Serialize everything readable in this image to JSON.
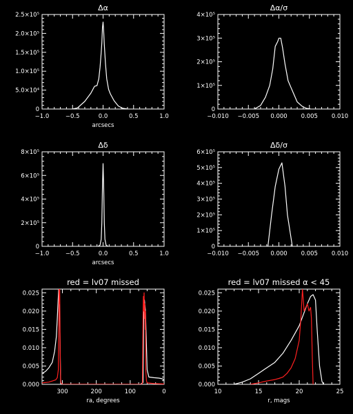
{
  "colors": {
    "background": "#000000",
    "axes": "#ffffff",
    "primary": "#ffffff",
    "highlight": "#ff2020"
  },
  "chart_data": [
    {
      "type": "line",
      "title": "Δα",
      "xlabel": "arcsecs",
      "ylabel": "",
      "xlim": [
        -1.0,
        1.0
      ],
      "ylim": [
        0,
        250000
      ],
      "xticks": [
        {
          "v": -1.0,
          "label": "−1.0"
        },
        {
          "v": -0.5,
          "label": "−0.5"
        },
        {
          "v": 0.0,
          "label": "0.0"
        },
        {
          "v": 0.5,
          "label": "0.5"
        },
        {
          "v": 1.0,
          "label": "1.0"
        }
      ],
      "yticks": [
        {
          "v": 0,
          "label": "0"
        },
        {
          "v": 50000,
          "label": "5.0×10⁴"
        },
        {
          "v": 100000,
          "label": "1.0×10⁵"
        },
        {
          "v": 150000,
          "label": "1.5×10⁵"
        },
        {
          "v": 200000,
          "label": "2.0×10⁵"
        },
        {
          "v": 250000,
          "label": "2.5×10⁵"
        }
      ],
      "series": [
        {
          "color": "#ffffff",
          "x": [
            -0.5,
            -0.42,
            -0.3,
            -0.2,
            -0.14,
            -0.1,
            -0.07,
            -0.05,
            -0.03,
            -0.02,
            -0.01,
            0.0,
            0.01,
            0.02,
            0.04,
            0.06,
            0.09,
            0.12,
            0.18,
            0.25,
            0.32,
            0.4
          ],
          "y": [
            0,
            3000,
            20000,
            42000,
            60000,
            62000,
            80000,
            110000,
            150000,
            175000,
            215000,
            230000,
            205000,
            170000,
            120000,
            80000,
            52000,
            40000,
            22000,
            8000,
            2000,
            0
          ]
        }
      ]
    },
    {
      "type": "line",
      "title": "Δα/σ",
      "xlabel": "",
      "ylabel": "",
      "xlim": [
        -0.01,
        0.01
      ],
      "ylim": [
        0,
        400000
      ],
      "xticks": [
        {
          "v": -0.01,
          "label": "−0.010"
        },
        {
          "v": -0.005,
          "label": "−0.005"
        },
        {
          "v": 0.0,
          "label": "0.000"
        },
        {
          "v": 0.005,
          "label": "0.005"
        },
        {
          "v": 0.01,
          "label": "0.010"
        }
      ],
      "yticks": [
        {
          "v": 0,
          "label": "0"
        },
        {
          "v": 100000,
          "label": "1×10⁵"
        },
        {
          "v": 200000,
          "label": "2×10⁵"
        },
        {
          "v": 300000,
          "label": "3×10⁵"
        },
        {
          "v": 400000,
          "label": "4×10⁵"
        }
      ],
      "series": [
        {
          "color": "#ffffff",
          "x": [
            -0.004,
            -0.003,
            -0.0022,
            -0.0015,
            -0.001,
            -0.0006,
            -0.0002,
            0.0,
            0.0003,
            0.0006,
            0.001,
            0.0015,
            0.002,
            0.0025,
            0.003,
            0.0038,
            0.0045,
            0.0052
          ],
          "y": [
            0,
            15000,
            50000,
            100000,
            170000,
            265000,
            285000,
            300000,
            300000,
            260000,
            190000,
            120000,
            90000,
            60000,
            30000,
            12000,
            3000,
            0
          ]
        }
      ]
    },
    {
      "type": "line",
      "title": "Δδ",
      "xlabel": "arcsecs",
      "ylabel": "",
      "xlim": [
        -1.0,
        1.0
      ],
      "ylim": [
        0,
        800000
      ],
      "xticks": [
        {
          "v": -1.0,
          "label": "−1.0"
        },
        {
          "v": -0.5,
          "label": "−0.5"
        },
        {
          "v": 0.0,
          "label": "0.0"
        },
        {
          "v": 0.5,
          "label": "0.5"
        },
        {
          "v": 1.0,
          "label": "1.0"
        }
      ],
      "yticks": [
        {
          "v": 0,
          "label": "0"
        },
        {
          "v": 200000,
          "label": "2×10⁵"
        },
        {
          "v": 400000,
          "label": "4×10⁵"
        },
        {
          "v": 600000,
          "label": "6×10⁵"
        },
        {
          "v": 800000,
          "label": "8×10⁵"
        }
      ],
      "series": [
        {
          "color": "#ffffff",
          "x": [
            -0.08,
            -0.05,
            -0.03,
            -0.02,
            -0.01,
            0.0,
            0.01,
            0.02,
            0.03,
            0.05,
            0.08
          ],
          "y": [
            0,
            10000,
            60000,
            200000,
            500000,
            700000,
            500000,
            200000,
            60000,
            10000,
            0
          ]
        }
      ]
    },
    {
      "type": "line",
      "title": "Δδ/σ",
      "xlabel": "",
      "ylabel": "",
      "xlim": [
        -0.01,
        0.01
      ],
      "ylim": [
        0,
        600000
      ],
      "xticks": [
        {
          "v": -0.01,
          "label": "−0.010"
        },
        {
          "v": -0.005,
          "label": "−0.005"
        },
        {
          "v": 0.0,
          "label": "0.000"
        },
        {
          "v": 0.005,
          "label": "0.005"
        },
        {
          "v": 0.01,
          "label": "0.010"
        }
      ],
      "yticks": [
        {
          "v": 0,
          "label": "0"
        },
        {
          "v": 100000,
          "label": "1×10⁵"
        },
        {
          "v": 200000,
          "label": "2×10⁵"
        },
        {
          "v": 300000,
          "label": "3×10⁵"
        },
        {
          "v": 400000,
          "label": "4×10⁵"
        },
        {
          "v": 500000,
          "label": "5×10⁵"
        },
        {
          "v": 600000,
          "label": "6×10⁵"
        }
      ],
      "series": [
        {
          "color": "#ffffff",
          "x": [
            -0.0018,
            -0.0012,
            -0.0006,
            0.0,
            0.0005,
            0.001,
            0.0014,
            0.0022
          ],
          "y": [
            0,
            200000,
            380000,
            490000,
            530000,
            380000,
            200000,
            0
          ]
        }
      ]
    },
    {
      "type": "line",
      "title": "red = lv07 missed",
      "xlabel": "ra, degrees",
      "ylabel": "",
      "xlim": [
        360,
        0
      ],
      "ylim": [
        0,
        0.026
      ],
      "xticks": [
        {
          "v": 300,
          "label": "300"
        },
        {
          "v": 200,
          "label": "200"
        },
        {
          "v": 100,
          "label": "100"
        },
        {
          "v": 0,
          "label": "0"
        }
      ],
      "yticks": [
        {
          "v": 0,
          "label": "0.000"
        },
        {
          "v": 0.005,
          "label": "0.005"
        },
        {
          "v": 0.01,
          "label": "0.010"
        },
        {
          "v": 0.015,
          "label": "0.015"
        },
        {
          "v": 0.02,
          "label": "0.020"
        },
        {
          "v": 0.025,
          "label": "0.025"
        }
      ],
      "series": [
        {
          "color": "#ffffff",
          "x": [
            360,
            350,
            340,
            330,
            323,
            318,
            315,
            313,
            311,
            309,
            307,
            305,
            300,
            250,
            150,
            70,
            62,
            60,
            58,
            55,
            50,
            45,
            30,
            15,
            5,
            0
          ],
          "y": [
            0.003,
            0.0035,
            0.0045,
            0.006,
            0.009,
            0.013,
            0.018,
            0.022,
            0.026,
            0.024,
            0.012,
            0.0002,
            0,
            0,
            0,
            0,
            0.0005,
            0.022,
            0.023,
            0.02,
            0.004,
            0.002,
            0.0018,
            0.0017,
            0.0015,
            0.0012
          ]
        },
        {
          "color": "#ff2020",
          "x": [
            360,
            340,
            320,
            315,
            312,
            310,
            309,
            308,
            307,
            306,
            305,
            304,
            300,
            250,
            150,
            66,
            64,
            62,
            61,
            60,
            59,
            58,
            57,
            56,
            55,
            54,
            52,
            50,
            30,
            0
          ],
          "y": [
            0.0004,
            0.0006,
            0.0012,
            0.0018,
            0.004,
            0.026,
            0.022,
            0.026,
            0.015,
            0.005,
            0.0015,
            0.0004,
            0,
            0,
            0,
            0,
            0.0003,
            0.019,
            0.024,
            0.02,
            0.025,
            0.018,
            0.022,
            0.015,
            0.02,
            0.004,
            0.001,
            0.0004,
            0.0002,
            0.0001
          ]
        }
      ]
    },
    {
      "type": "line",
      "title": "red = lv07 missed α < 45",
      "xlabel": "r, mags",
      "ylabel": "",
      "xlim": [
        10,
        25
      ],
      "ylim": [
        0,
        0.026
      ],
      "xticks": [
        {
          "v": 10,
          "label": "10"
        },
        {
          "v": 15,
          "label": "15"
        },
        {
          "v": 20,
          "label": "20"
        },
        {
          "v": 25,
          "label": "25"
        }
      ],
      "yticks": [
        {
          "v": 0,
          "label": "0.000"
        },
        {
          "v": 0.005,
          "label": "0.005"
        },
        {
          "v": 0.01,
          "label": "0.010"
        },
        {
          "v": 0.015,
          "label": "0.015"
        },
        {
          "v": 0.02,
          "label": "0.020"
        },
        {
          "v": 0.025,
          "label": "0.025"
        }
      ],
      "series": [
        {
          "color": "#ffffff",
          "x": [
            12,
            13,
            14,
            15,
            16,
            17,
            18,
            19,
            20,
            20.5,
            21,
            21.4,
            21.7,
            22,
            22.2,
            22.5,
            22.8,
            23
          ],
          "y": [
            0,
            0.0006,
            0.0015,
            0.003,
            0.0045,
            0.006,
            0.0085,
            0.012,
            0.016,
            0.019,
            0.022,
            0.024,
            0.0245,
            0.023,
            0.015,
            0.005,
            0.0008,
            0
          ]
        },
        {
          "color": "#ff2020",
          "x": [
            14,
            15,
            16,
            17,
            17.5,
            18,
            18.5,
            19,
            19.5,
            20,
            20.2,
            20.4,
            20.6,
            20.8,
            21,
            21.2,
            21.4,
            21.5,
            21.6,
            21.7
          ],
          "y": [
            0,
            0.0004,
            0.0009,
            0.0013,
            0.0016,
            0.002,
            0.003,
            0.0045,
            0.007,
            0.012,
            0.018,
            0.026,
            0.02,
            0.021,
            0.022,
            0.02,
            0.021,
            0.018,
            0.008,
            0
          ]
        }
      ]
    }
  ]
}
